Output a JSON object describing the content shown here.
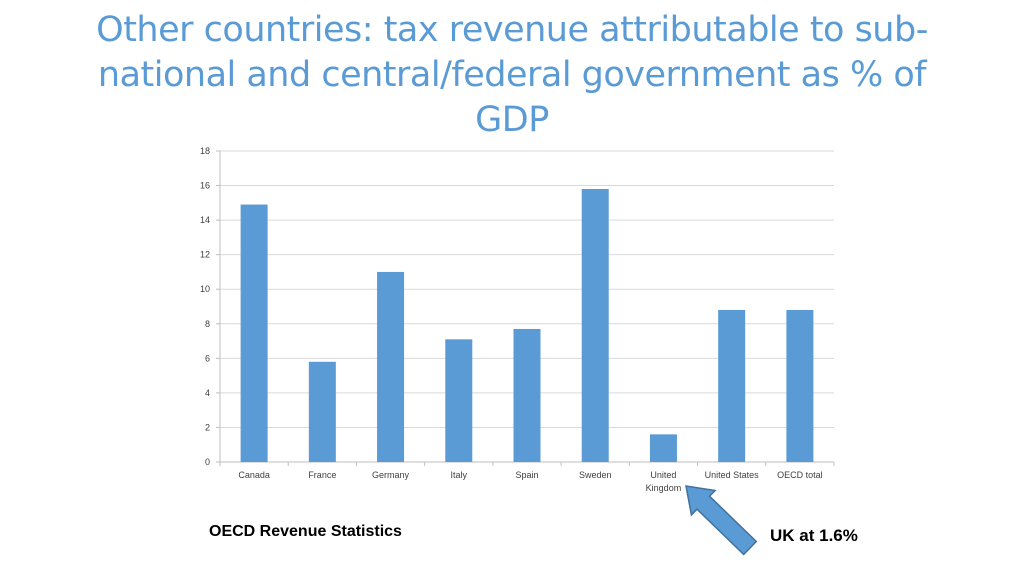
{
  "slide": {
    "title": "Other countries: tax revenue attributable to sub-national and central/federal government as % of GDP",
    "source_note": "OECD Revenue Statistics",
    "callout": "UK at 1.6%"
  },
  "colors": {
    "title": "#5b9bd5",
    "bar": "#5b9bd5",
    "gridline": "#d9d9d9",
    "arrow_fill": "#5b9bd5",
    "arrow_stroke": "#41719c"
  },
  "icons": {
    "callout_arrow": "arrow-up-left-icon"
  },
  "chart_data": {
    "type": "bar",
    "title": "",
    "xlabel": "",
    "ylabel": "",
    "categories": [
      "Canada",
      "France",
      "Germany",
      "Italy",
      "Spain",
      "Sweden",
      "United Kingdom",
      "United States",
      "OECD total"
    ],
    "category_label_lines": [
      [
        "Canada"
      ],
      [
        "France"
      ],
      [
        "Germany"
      ],
      [
        "Italy"
      ],
      [
        "Spain"
      ],
      [
        "Sweden"
      ],
      [
        "United",
        "Kingdom"
      ],
      [
        "United States"
      ],
      [
        "OECD total"
      ]
    ],
    "values": [
      14.9,
      5.8,
      11.0,
      7.1,
      7.7,
      15.8,
      1.6,
      8.8,
      8.8
    ],
    "ylim": [
      0,
      18
    ],
    "yticks": [
      0,
      2,
      4,
      6,
      8,
      10,
      12,
      14,
      16,
      18
    ],
    "grid": true,
    "legend": "none"
  }
}
